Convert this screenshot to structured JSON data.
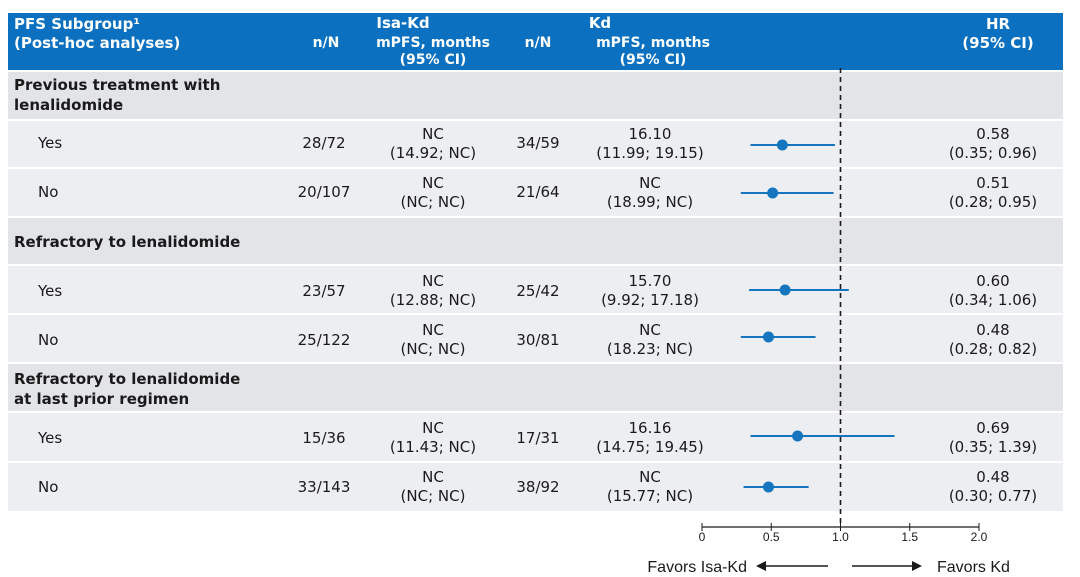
{
  "header": {
    "title": "PFS Subgroup¹\n(Post-hoc analyses)",
    "isa_kd": "Isa-Kd",
    "kd": "Kd",
    "n_n": "n/N",
    "mpfs": "mPFS, months\n(95% CI)",
    "hr": "HR\n(95% CI)"
  },
  "groups": [
    {
      "title": "Previous treatment with\nlenalidomide"
    },
    {
      "title": "Refractory to lenalidomide"
    },
    {
      "title": "Refractory to lenalidomide\nat last prior regimen"
    }
  ],
  "rows": [
    {
      "label": "Yes",
      "isa_n": "28/72",
      "isa_pfs": "NC\n(14.92; NC)",
      "kd_n": "34/59",
      "kd_pfs": "16.10\n(11.99; 19.15)",
      "hr_text": "0.58\n(0.35; 0.96)"
    },
    {
      "label": "No",
      "isa_n": "20/107",
      "isa_pfs": "NC\n(NC; NC)",
      "kd_n": "21/64",
      "kd_pfs": "NC\n(18.99; NC)",
      "hr_text": "0.51\n(0.28; 0.95)"
    },
    {
      "label": "Yes",
      "isa_n": "23/57",
      "isa_pfs": "NC\n(12.88; NC)",
      "kd_n": "25/42",
      "kd_pfs": "15.70\n(9.92; 17.18)",
      "hr_text": "0.60\n(0.34; 1.06)"
    },
    {
      "label": "No",
      "isa_n": "25/122",
      "isa_pfs": "NC\n(NC; NC)",
      "kd_n": "30/81",
      "kd_pfs": "NC\n(18.23; NC)",
      "hr_text": "0.48\n(0.28; 0.82)"
    },
    {
      "label": "Yes",
      "isa_n": "15/36",
      "isa_pfs": "NC\n(11.43; NC)",
      "kd_n": "17/31",
      "kd_pfs": "16.16\n(14.75; 19.45)",
      "hr_text": "0.69\n(0.35; 1.39)"
    },
    {
      "label": "No",
      "isa_n": "33/143",
      "isa_pfs": "NC\n(NC; NC)",
      "kd_n": "38/92",
      "kd_pfs": "NC\n(15.77; NC)",
      "hr_text": "0.48\n(0.30; 0.77)"
    }
  ],
  "chart_data": {
    "type": "forest",
    "title": "PFS Subgroup (Post-hoc analyses)",
    "xlabel_left": "Favors Isa-Kd",
    "xlabel_right": "Favors Kd",
    "xlim": [
      0,
      2.0
    ],
    "ticks": [
      0,
      0.5,
      1.0,
      1.5,
      2.0
    ],
    "tick_labels": [
      "0",
      "0.5",
      "1.0",
      "1.5",
      "2.0"
    ],
    "reference_line": 1.0,
    "series": [
      {
        "name": "Previous treatment with lenalidomide - Yes",
        "hr": 0.58,
        "lower": 0.35,
        "upper": 0.96
      },
      {
        "name": "Previous treatment with lenalidomide - No",
        "hr": 0.51,
        "lower": 0.28,
        "upper": 0.95
      },
      {
        "name": "Refractory to lenalidomide - Yes",
        "hr": 0.6,
        "lower": 0.34,
        "upper": 1.06
      },
      {
        "name": "Refractory to lenalidomide - No",
        "hr": 0.48,
        "lower": 0.28,
        "upper": 0.82
      },
      {
        "name": "Refractory to lenalidomide at last prior regimen - Yes",
        "hr": 0.69,
        "lower": 0.35,
        "upper": 1.39
      },
      {
        "name": "Refractory to lenalidomide at last prior regimen - No",
        "hr": 0.48,
        "lower": 0.3,
        "upper": 0.77
      }
    ]
  },
  "colors": {
    "header_bg": "#0a70bf",
    "marker": "#1576bf"
  }
}
